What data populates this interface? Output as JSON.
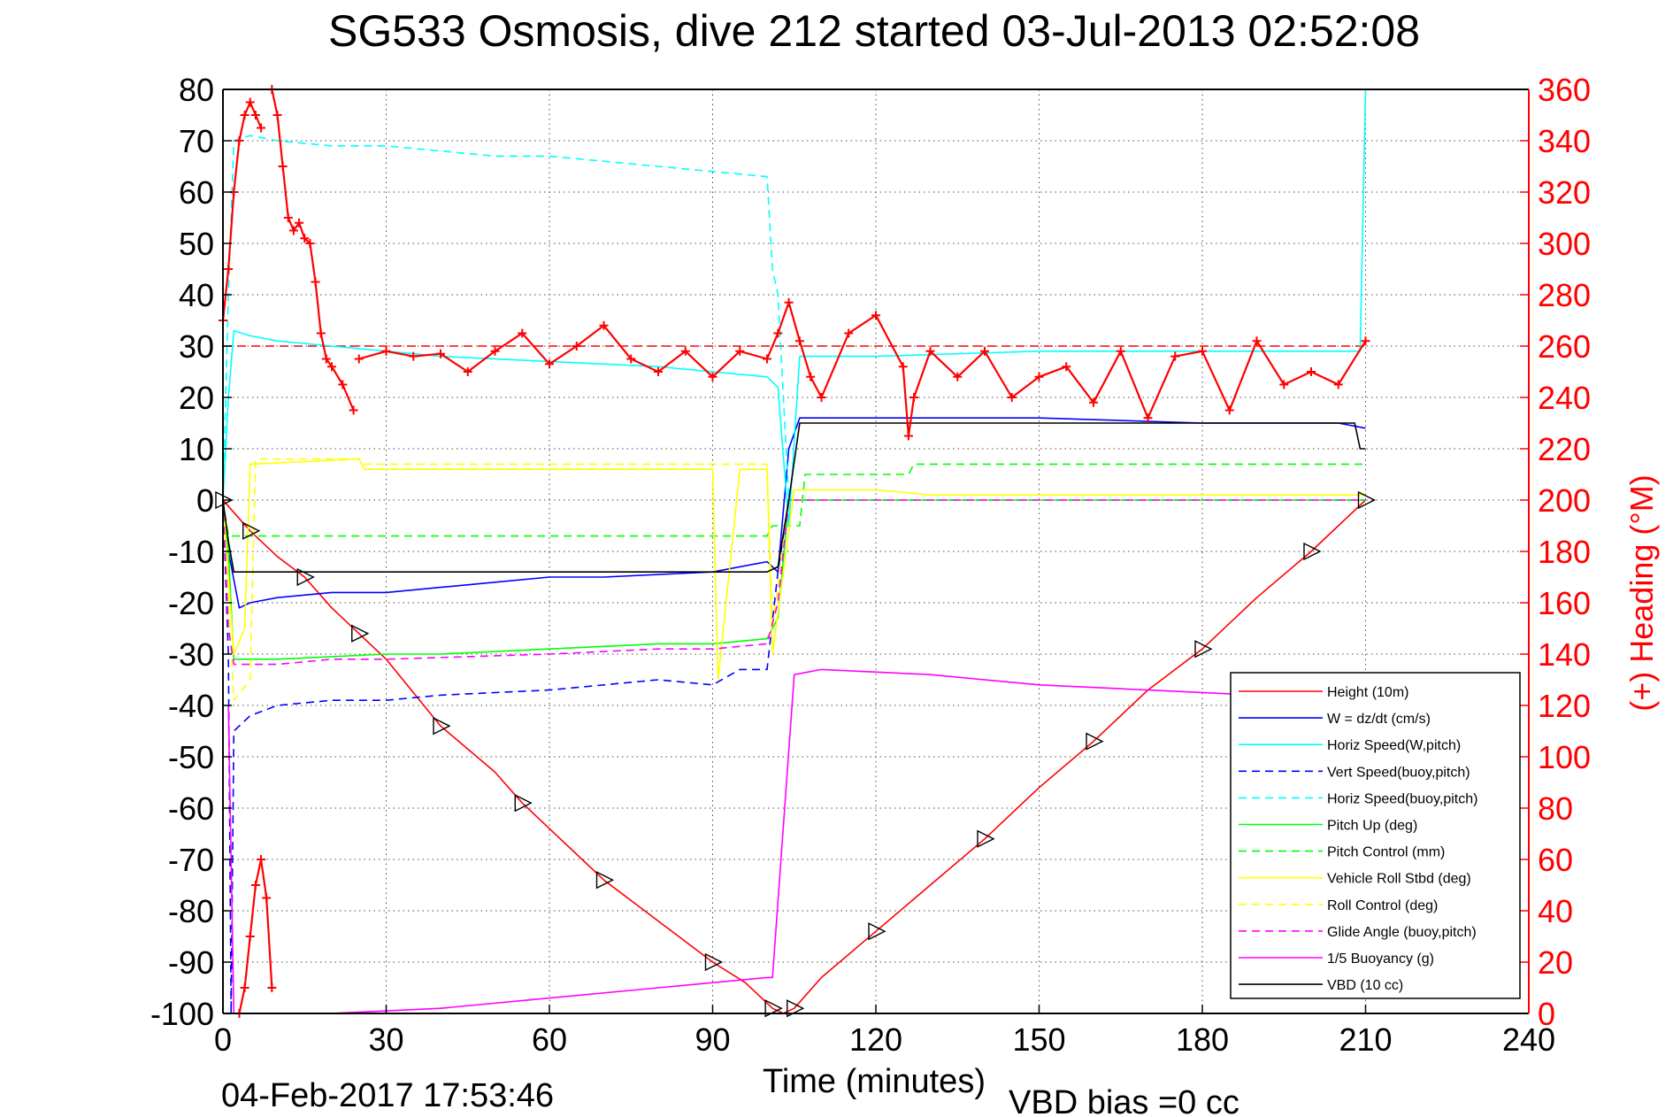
{
  "chart_data": {
    "type": "line",
    "title": "SG533 Osmosis, dive 212 started 03-Jul-2013 02:52:08",
    "xlabel": "Time (minutes)",
    "ylabel_right": "(+) Heading (°M)",
    "footer_left": "04-Feb-2017 17:53:46",
    "footer_right": "VBD bias =0 cc",
    "xlim": [
      0,
      240
    ],
    "ylim": [
      -100,
      80
    ],
    "ylim_right": [
      0,
      360
    ],
    "xticks": [
      "0",
      "30",
      "60",
      "90",
      "120",
      "150",
      "180",
      "210",
      "240"
    ],
    "yticks": [
      "80",
      "70",
      "60",
      "50",
      "40",
      "30",
      "20",
      "10",
      "0",
      "-10",
      "-20",
      "-30",
      "-40",
      "-50",
      "-60",
      "-70",
      "-80",
      "-90",
      "-100"
    ],
    "yticks_right": [
      "360",
      "340",
      "320",
      "300",
      "280",
      "260",
      "240",
      "220",
      "200",
      "180",
      "160",
      "140",
      "120",
      "100",
      "80",
      "60",
      "40",
      "20",
      "0"
    ],
    "grid": true,
    "legend_position": "bottom-right",
    "colors": {
      "red": "#ff0000",
      "blue": "#0000ff",
      "cyan": "#00ffff",
      "green": "#00ff00",
      "yellow": "#ffff00",
      "magenta": "#ff00ff",
      "black": "#000000"
    },
    "series": [
      {
        "name": "Height (10m)",
        "color": "#ff0000",
        "dash": false,
        "x": [
          0,
          5,
          10,
          15,
          20,
          25,
          30,
          40,
          50,
          55,
          60,
          70,
          80,
          90,
          96,
          101,
          103,
          105,
          110,
          120,
          130,
          140,
          150,
          160,
          170,
          180,
          190,
          200,
          205,
          210
        ],
        "y": [
          0,
          -6,
          -11,
          -15,
          -21,
          -26,
          -31,
          -44,
          -53,
          -59,
          -64,
          -74,
          -82,
          -90,
          -94,
          -99,
          -100,
          -99,
          -93,
          -84,
          -75,
          -66,
          -56,
          -47,
          -37,
          -29,
          -19,
          -10,
          -5,
          0
        ]
      },
      {
        "name": "W = dz/dt (cm/s)",
        "color": "#0000ff",
        "dash": false,
        "x": [
          0,
          1,
          3,
          5,
          10,
          20,
          30,
          40,
          50,
          60,
          70,
          80,
          90,
          100,
          102,
          104,
          106,
          110,
          120,
          150,
          180,
          200,
          205,
          210
        ],
        "y": [
          0,
          -10,
          -21,
          -20,
          -19,
          -18,
          -18,
          -17,
          -16,
          -15,
          -15,
          -14.5,
          -14,
          -12,
          -14,
          10,
          16,
          16,
          16,
          16,
          15,
          15,
          15,
          14
        ]
      },
      {
        "name": "Horiz Speed(W,pitch)",
        "color": "#00ffff",
        "dash": false,
        "x": [
          0,
          1,
          2,
          5,
          10,
          20,
          40,
          60,
          80,
          90,
          100,
          102,
          104,
          106,
          110,
          120,
          150,
          180,
          200,
          209,
          210
        ],
        "y": [
          0,
          20,
          33,
          32,
          31,
          30,
          28,
          27,
          26,
          25,
          24,
          22,
          -5,
          28,
          28,
          28,
          29,
          29,
          29,
          29,
          80
        ]
      },
      {
        "name": "Vert Speed(buoy,pitch)",
        "color": "#0000ff",
        "dash": true,
        "x": [
          0,
          1,
          1.5,
          2,
          5,
          10,
          20,
          30,
          40,
          60,
          80,
          90,
          95,
          100,
          102,
          104,
          210
        ],
        "y": [
          0,
          -30,
          -100,
          -45,
          -42,
          -40,
          -39,
          -39,
          -38,
          -37,
          -35,
          -36,
          -33,
          -33,
          -14,
          0,
          0
        ]
      },
      {
        "name": "Horiz Speed(buoy,pitch)",
        "color": "#00ffff",
        "dash": true,
        "x": [
          0,
          1,
          2,
          5,
          10,
          20,
          30,
          50,
          60,
          80,
          90,
          100,
          101,
          102,
          104,
          210
        ],
        "y": [
          0,
          40,
          70,
          71,
          70,
          69,
          69,
          67,
          67,
          65,
          64,
          63,
          45,
          40,
          0,
          0
        ]
      },
      {
        "name": "Pitch Up (deg)",
        "color": "#00ff00",
        "dash": false,
        "x": [
          0,
          1,
          2,
          5,
          10,
          20,
          30,
          40,
          60,
          80,
          90,
          100,
          102,
          104,
          105,
          210
        ],
        "y": [
          0,
          -10,
          -31,
          -31,
          -31,
          -30.5,
          -30,
          -30,
          -29,
          -28,
          -28,
          -27,
          -23,
          0,
          0,
          0
        ]
      },
      {
        "name": "Pitch Control (mm)",
        "color": "#00ff00",
        "dash": true,
        "x": [
          0,
          1,
          2,
          30,
          60,
          100,
          101,
          106,
          107,
          126,
          127,
          210
        ],
        "y": [
          0,
          -7,
          -7,
          -7,
          -7,
          -7,
          -5,
          -5,
          5,
          5,
          7,
          7
        ]
      },
      {
        "name": "Vehicle Roll Stbd (deg)",
        "color": "#ffff00",
        "dash": false,
        "x": [
          0,
          2,
          4,
          5,
          25,
          26,
          50,
          70,
          90,
          91,
          95,
          96,
          100,
          101,
          105,
          110,
          120,
          130,
          150,
          180,
          210
        ],
        "y": [
          0,
          -30,
          -25,
          7,
          8,
          6,
          6,
          6,
          6,
          -35,
          6,
          6,
          6,
          -30,
          2,
          2,
          2,
          1,
          1,
          1,
          1
        ]
      },
      {
        "name": "Roll Control (deg)",
        "color": "#ffff00",
        "dash": true,
        "x": [
          0,
          2,
          5,
          6,
          25,
          26,
          50,
          80,
          90,
          100,
          101,
          104,
          105,
          210
        ],
        "y": [
          0,
          -39,
          -35,
          8,
          8,
          7,
          7,
          7,
          7,
          7,
          -25,
          0,
          0,
          0
        ]
      },
      {
        "name": "Glide Angle (buoy,pitch)",
        "color": "#ff00ff",
        "dash": true,
        "x": [
          0,
          1,
          2,
          5,
          10,
          20,
          30,
          60,
          80,
          90,
          100,
          102,
          104,
          210
        ],
        "y": [
          0,
          -25,
          -32,
          -32,
          -32,
          -31,
          -31,
          -30,
          -29,
          -29,
          -28,
          -20,
          0,
          0
        ]
      },
      {
        "name": "1/5 Buoyancy (g)",
        "color": "#ff00ff",
        "dash": false,
        "x": [
          1,
          2,
          10,
          20,
          40,
          60,
          80,
          100,
          101,
          105,
          110,
          130,
          150,
          170,
          190,
          205,
          210
        ],
        "y": [
          -40,
          -100,
          -100,
          -100,
          -99,
          -97,
          -95,
          -93,
          -93,
          -34,
          -33,
          -34,
          -36,
          -37,
          -38,
          -38,
          -37
        ]
      },
      {
        "name": "VBD (10 cc)",
        "color": "#000000",
        "dash": false,
        "x": [
          0,
          1,
          2,
          10,
          30,
          60,
          90,
          100,
          102,
          104,
          106,
          110,
          150,
          200,
          208,
          209,
          210
        ],
        "y": [
          0,
          -8,
          -14,
          -14,
          -14,
          -14,
          -14,
          -14,
          -13,
          0,
          15,
          15,
          15,
          15,
          15,
          10,
          10
        ]
      }
    ],
    "heading": {
      "axis": "right",
      "color": "#ff0000",
      "marker": "+",
      "reference": 260,
      "segments": [
        {
          "x": [
            0,
            1,
            2,
            3,
            4,
            5,
            6,
            7
          ],
          "y": [
            270,
            290,
            320,
            340,
            350,
            355,
            350,
            345
          ]
        },
        {
          "x": [
            9,
            10,
            11,
            12,
            13,
            14,
            15,
            16,
            17,
            18,
            19,
            20,
            22,
            24
          ],
          "y": [
            360,
            350,
            330,
            310,
            305,
            308,
            302,
            300,
            285,
            265,
            255,
            252,
            245,
            235
          ]
        },
        {
          "x": [
            25,
            30,
            35,
            40,
            45,
            50,
            55,
            60,
            65,
            70,
            75,
            80,
            85,
            90,
            95,
            100,
            102,
            104,
            106,
            108,
            110,
            115,
            120,
            125,
            126,
            127,
            130,
            135,
            140,
            145,
            150,
            155,
            160,
            165,
            170,
            175,
            180,
            185,
            190,
            195,
            200,
            205,
            210
          ],
          "y": [
            255,
            258,
            256,
            257,
            250,
            258,
            265,
            253,
            260,
            268,
            255,
            250,
            258,
            248,
            258,
            255,
            265,
            277,
            262,
            248,
            240,
            265,
            272,
            252,
            225,
            240,
            258,
            248,
            258,
            240,
            248,
            252,
            238,
            258,
            232,
            256,
            258,
            235,
            262,
            245,
            250,
            245,
            262
          ]
        },
        {
          "x": [
            3,
            4,
            5,
            6,
            7,
            8,
            9
          ],
          "y": [
            0,
            10,
            30,
            50,
            60,
            45,
            10
          ]
        }
      ]
    }
  }
}
